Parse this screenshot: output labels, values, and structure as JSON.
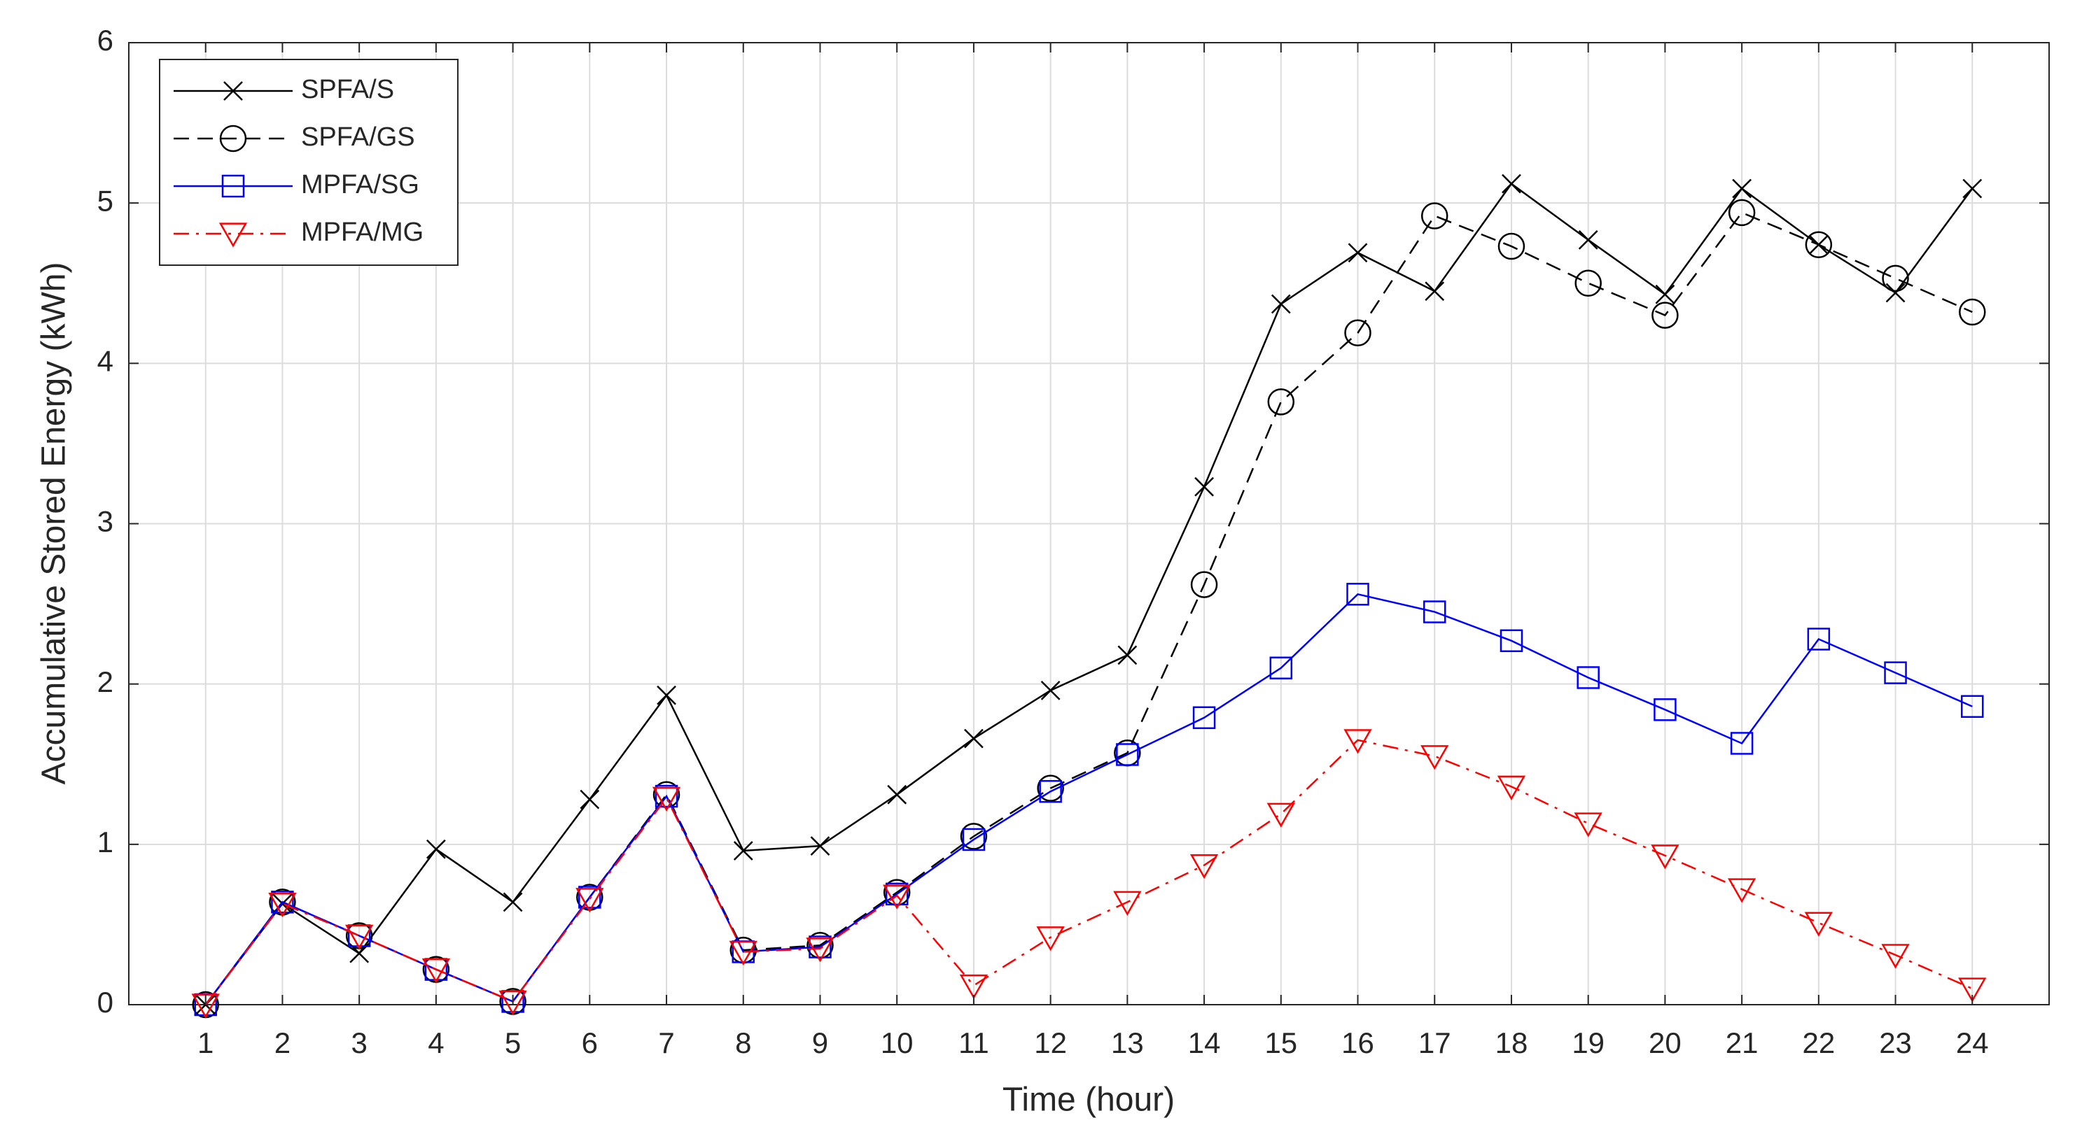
{
  "chart_data": {
    "type": "line",
    "xlabel": "Time (hour)",
    "ylabel": "Accumulative Stored Energy (kWh)",
    "x": [
      1,
      2,
      3,
      4,
      5,
      6,
      7,
      8,
      9,
      10,
      11,
      12,
      13,
      14,
      15,
      16,
      17,
      18,
      19,
      20,
      21,
      22,
      23,
      24
    ],
    "xlim": [
      0,
      25
    ],
    "xticks": [
      1,
      2,
      3,
      4,
      5,
      6,
      7,
      8,
      9,
      10,
      11,
      12,
      13,
      14,
      15,
      16,
      17,
      18,
      19,
      20,
      21,
      22,
      23,
      24
    ],
    "ylim": [
      0,
      6
    ],
    "yticks": [
      0,
      1,
      2,
      3,
      4,
      5,
      6
    ],
    "grid": true,
    "legend": "upper left",
    "series": [
      {
        "name": "SPFA/S",
        "color": "#000000",
        "linestyle": "solid",
        "marker": "x",
        "values": [
          0,
          0.63,
          0.32,
          0.97,
          0.64,
          1.28,
          1.93,
          0.96,
          0.99,
          1.31,
          1.66,
          1.96,
          2.18,
          3.23,
          4.37,
          4.69,
          4.45,
          5.12,
          4.77,
          4.43,
          5.09,
          4.74,
          4.44,
          5.09
        ]
      },
      {
        "name": "SPFA/GS",
        "color": "#000000",
        "linestyle": "dashed",
        "marker": "circle",
        "values": [
          0,
          0.64,
          0.43,
          0.22,
          0.02,
          0.67,
          1.31,
          0.34,
          0.37,
          0.7,
          1.05,
          1.35,
          1.57,
          2.62,
          3.76,
          4.19,
          4.92,
          4.73,
          4.5,
          4.3,
          4.94,
          4.74,
          4.53,
          4.32
        ]
      },
      {
        "name": "MPFA/SG",
        "color": "#0000ff",
        "linestyle": "solid",
        "marker": "square",
        "values": [
          0,
          0.64,
          0.43,
          0.22,
          0.02,
          0.67,
          1.3,
          0.33,
          0.36,
          0.69,
          1.03,
          1.33,
          1.56,
          1.79,
          2.1,
          2.56,
          2.45,
          2.27,
          2.04,
          1.84,
          1.63,
          2.28,
          2.07,
          1.86
        ]
      },
      {
        "name": "MPFA/MG",
        "color": "#ff0000",
        "linestyle": "dashdot",
        "marker": "triangle-down",
        "values": [
          0,
          0.63,
          0.43,
          0.22,
          0.02,
          0.66,
          1.29,
          0.33,
          0.35,
          0.68,
          0.12,
          0.42,
          0.64,
          0.87,
          1.19,
          1.65,
          1.55,
          1.36,
          1.13,
          0.93,
          0.72,
          0.51,
          0.31,
          0.1
        ]
      }
    ]
  }
}
